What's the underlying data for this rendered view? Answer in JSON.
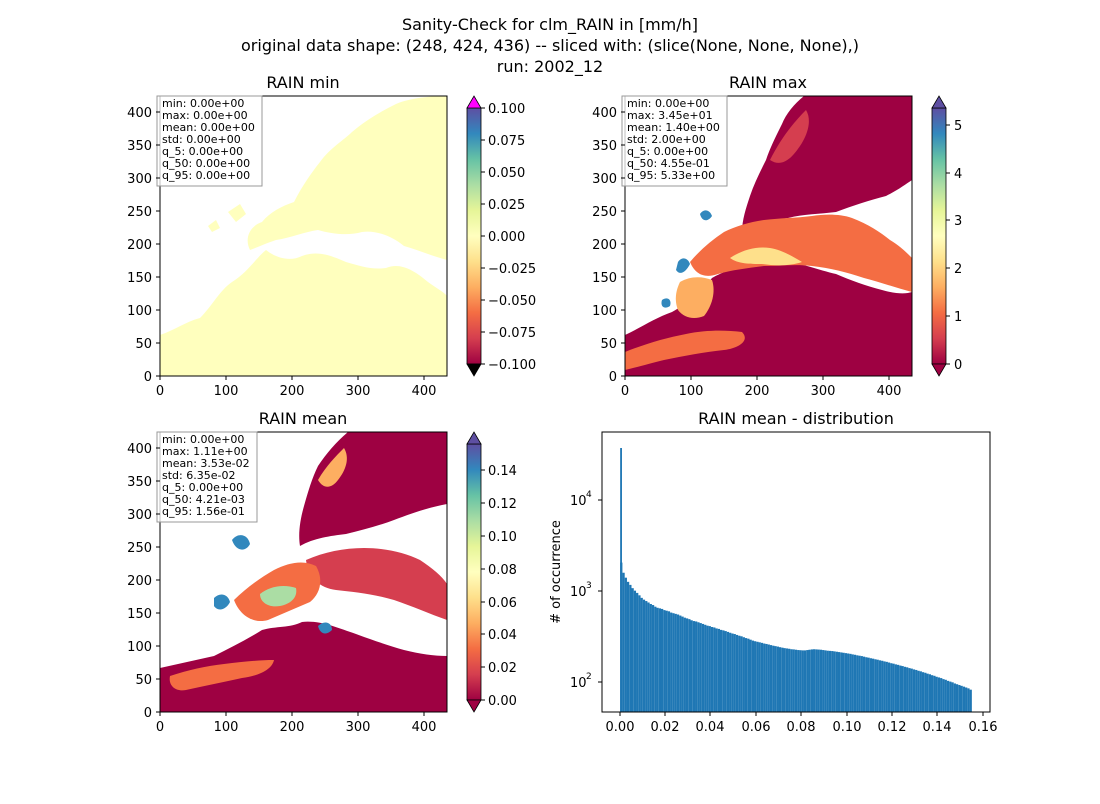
{
  "figure": {
    "suptitle_lines": [
      "Sanity-Check for clm_RAIN in [mm/h]",
      "original data shape: (248, 424, 436) -- sliced with: (slice(None, None, None),)",
      "run: 2002_12"
    ]
  },
  "panels": {
    "min": {
      "title": "RAIN min",
      "stats": [
        "min: 0.00e+00",
        "max: 0.00e+00",
        "mean: 0.00e+00",
        "std: 0.00e+00",
        "q_5: 0.00e+00",
        "q_50: 0.00e+00",
        "q_95: 0.00e+00"
      ],
      "xticks": [
        "0",
        "100",
        "200",
        "300",
        "400"
      ],
      "yticks": [
        "0",
        "50",
        "100",
        "150",
        "200",
        "250",
        "300",
        "350",
        "400"
      ],
      "cbar_ticks": [
        "0.100",
        "0.075",
        "0.050",
        "0.025",
        "0.000",
        "−0.025",
        "−0.050",
        "−0.075",
        "−0.100"
      ]
    },
    "max": {
      "title": "RAIN max",
      "stats": [
        "min: 0.00e+00",
        "max: 3.45e+01",
        "mean: 1.40e+00",
        "std: 2.00e+00",
        "q_5: 0.00e+00",
        "q_50: 4.55e-01",
        "q_95: 5.33e+00"
      ],
      "xticks": [
        "0",
        "100",
        "200",
        "300",
        "400"
      ],
      "yticks": [
        "0",
        "50",
        "100",
        "150",
        "200",
        "250",
        "300",
        "350",
        "400"
      ],
      "cbar_ticks": [
        "5",
        "4",
        "3",
        "2",
        "1",
        "0"
      ]
    },
    "mean": {
      "title": "RAIN mean",
      "stats": [
        "min: 0.00e+00",
        "max: 1.11e+00",
        "mean: 3.53e-02",
        "std: 6.35e-02",
        "q_5: 0.00e+00",
        "q_50: 4.21e-03",
        "q_95: 1.56e-01"
      ],
      "xticks": [
        "0",
        "100",
        "200",
        "300",
        "400"
      ],
      "yticks": [
        "0",
        "50",
        "100",
        "150",
        "200",
        "250",
        "300",
        "350",
        "400"
      ],
      "cbar_ticks": [
        "0.14",
        "0.12",
        "0.10",
        "0.08",
        "0.06",
        "0.04",
        "0.02",
        "0.00"
      ]
    },
    "dist": {
      "title": "RAIN mean - distribution",
      "ylabel": "# of occurrence",
      "xticks": [
        "0.00",
        "0.02",
        "0.04",
        "0.06",
        "0.08",
        "0.10",
        "0.12",
        "0.14",
        "0.16"
      ],
      "yticks": [
        "10",
        "10",
        "10"
      ],
      "yexps": [
        "4",
        "3",
        "2"
      ]
    }
  },
  "colors": {
    "bar": "#1f77b4",
    "land_min": "#ffffbe",
    "spectral_low": "#9e0142",
    "spectral_high": "#5e4fa2",
    "cbar_over": "#ff00ff",
    "cbar_under": "#000000"
  },
  "chart_data": [
    {
      "type": "heatmap",
      "title": "RAIN min",
      "xlim": [
        0,
        436
      ],
      "ylim": [
        0,
        424
      ],
      "colorbar_range": [
        -0.1,
        0.1
      ],
      "colormap": "Spectral",
      "note_values": "all land values 0.0"
    },
    {
      "type": "heatmap",
      "title": "RAIN max",
      "xlim": [
        0,
        436
      ],
      "ylim": [
        0,
        424
      ],
      "colorbar_range": [
        0,
        5.5
      ],
      "colormap": "Spectral"
    },
    {
      "type": "heatmap",
      "title": "RAIN mean",
      "xlim": [
        0,
        436
      ],
      "ylim": [
        0,
        424
      ],
      "colorbar_range": [
        0,
        0.156
      ],
      "colormap": "Spectral"
    },
    {
      "type": "bar",
      "title": "RAIN mean - distribution",
      "ylabel": "# of occurrence",
      "yscale": "log",
      "xlim": [
        -0.008,
        0.163
      ],
      "ylim": [
        50,
        60000
      ],
      "x": [
        0.0,
        0.0005,
        0.0015,
        0.0025,
        0.0035,
        0.0045,
        0.0055,
        0.0065,
        0.0075,
        0.0085,
        0.0095,
        0.0105,
        0.0115,
        0.0125,
        0.0135,
        0.0145,
        0.0155,
        0.0165,
        0.0175,
        0.0185,
        0.0195,
        0.0205,
        0.0215,
        0.0225,
        0.0235,
        0.0245,
        0.0255,
        0.0265,
        0.0275,
        0.0285,
        0.0295,
        0.0305,
        0.0315,
        0.0325,
        0.0335,
        0.0345,
        0.0355,
        0.0365,
        0.0375,
        0.0385,
        0.0395,
        0.0405,
        0.0415,
        0.0425,
        0.0435,
        0.0445,
        0.0455,
        0.0465,
        0.0475,
        0.0485,
        0.0495,
        0.0505,
        0.0515,
        0.0525,
        0.0535,
        0.0545,
        0.0555,
        0.0565,
        0.0575,
        0.0585,
        0.0595,
        0.0605,
        0.0615,
        0.0625,
        0.0635,
        0.0645,
        0.0655,
        0.0665,
        0.0675,
        0.0685,
        0.0695,
        0.0705,
        0.0715,
        0.0725,
        0.0735,
        0.0745,
        0.0755,
        0.0765,
        0.0775,
        0.0785,
        0.0795,
        0.0805,
        0.0815,
        0.0825,
        0.0835,
        0.0845,
        0.0855,
        0.0865,
        0.0875,
        0.0885,
        0.0895,
        0.0905,
        0.0915,
        0.0925,
        0.0935,
        0.0945,
        0.0955,
        0.0965,
        0.0975,
        0.0985,
        0.0995,
        0.1005,
        0.1015,
        0.1025,
        0.1035,
        0.1045,
        0.1055,
        0.1065,
        0.1075,
        0.1085,
        0.1095,
        0.1105,
        0.1115,
        0.1125,
        0.1135,
        0.1145,
        0.1155,
        0.1165,
        0.1175,
        0.1185,
        0.1195,
        0.1205,
        0.1215,
        0.1225,
        0.1235,
        0.1245,
        0.1255,
        0.1265,
        0.1275,
        0.1285,
        0.1295,
        0.1305,
        0.1315,
        0.1325,
        0.1335,
        0.1345,
        0.1355,
        0.1365,
        0.1375,
        0.1385,
        0.1395,
        0.1405,
        0.1415,
        0.1425,
        0.1435,
        0.1445,
        0.1455,
        0.1465,
        0.1475,
        0.1485,
        0.1495,
        0.1505,
        0.1515,
        0.1525,
        0.1535,
        0.1545
      ],
      "values": [
        40000,
        2200,
        1700,
        1500,
        1350,
        1250,
        1150,
        1080,
        1020,
        960,
        900,
        860,
        830,
        800,
        770,
        750,
        720,
        700,
        690,
        680,
        660,
        650,
        640,
        620,
        610,
        600,
        590,
        575,
        560,
        545,
        535,
        525,
        510,
        500,
        495,
        485,
        475,
        465,
        455,
        445,
        440,
        430,
        425,
        415,
        410,
        400,
        395,
        388,
        380,
        372,
        365,
        360,
        352,
        345,
        340,
        332,
        325,
        320,
        312,
        305,
        300,
        296,
        292,
        288,
        283,
        280,
        276,
        272,
        268,
        265,
        262,
        258,
        255,
        252,
        250,
        248,
        245,
        244,
        242,
        240,
        239,
        238,
        238,
        240,
        242,
        244,
        245,
        244,
        243,
        242,
        240,
        238,
        236,
        235,
        234,
        232,
        230,
        228,
        226,
        224,
        222,
        220,
        218,
        215,
        213,
        210,
        208,
        206,
        203,
        200,
        198,
        195,
        193,
        190,
        188,
        185,
        183,
        180,
        178,
        175,
        172,
        170,
        167,
        165,
        162,
        160,
        157,
        155,
        152,
        150,
        147,
        145,
        142,
        140,
        137,
        135,
        132,
        130,
        127,
        125,
        122,
        120,
        118,
        115,
        113,
        110,
        108,
        106,
        103,
        101,
        99,
        97,
        95,
        93,
        91,
        88
      ]
    }
  ]
}
